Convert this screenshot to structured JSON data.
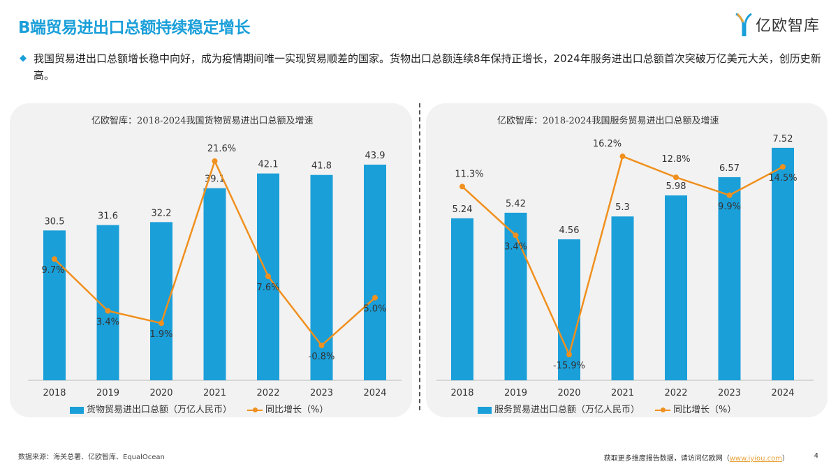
{
  "header": {
    "title": "B端贸易进出口总额持续稳定增长",
    "logo_text": "亿欧智库"
  },
  "summary": "我国贸易进出口总额增长稳中向好，成为疫情期间唯一实现贸易顺差的国家。货物出口总额连续8年保持正增长，2024年服务进出口总额首次突破万亿美元大关，创历史新高。",
  "colors": {
    "bar": "#1a9fd9",
    "line": "#f0901e",
    "title": "#1a9fd9"
  },
  "chart_data": [
    {
      "type": "bar+line",
      "title": "亿欧智库：2018-2024我国货物贸易进出口总额及增速",
      "categories": [
        "2018",
        "2019",
        "2020",
        "2021",
        "2022",
        "2023",
        "2024"
      ],
      "series": [
        {
          "name": "货物贸易进出口总额（万亿人民币）",
          "type": "bar",
          "values": [
            30.5,
            31.6,
            32.2,
            39.1,
            42.1,
            41.8,
            43.9
          ]
        },
        {
          "name": "同比增长（%）",
          "type": "line",
          "values": [
            9.7,
            3.4,
            1.9,
            21.6,
            7.6,
            -0.8,
            5.0
          ]
        }
      ],
      "legend": "bottom",
      "grid": false
    },
    {
      "type": "bar+line",
      "title": "亿欧智库：2018-2024我国服务贸易进出口总额及增速",
      "categories": [
        "2018",
        "2019",
        "2020",
        "2021",
        "2022",
        "2023",
        "2024"
      ],
      "series": [
        {
          "name": "服务贸易进出口总额（万亿人民币）",
          "type": "bar",
          "values": [
            5.24,
            5.42,
            4.56,
            5.3,
            5.98,
            6.57,
            7.52
          ]
        },
        {
          "name": "同比增长（%）",
          "type": "line",
          "values": [
            11.3,
            3.4,
            -15.9,
            16.2,
            12.8,
            9.9,
            14.5
          ]
        }
      ],
      "legend": "bottom",
      "grid": false
    }
  ],
  "footer": {
    "source": "数据来源：海关总署、亿欧智库、EqualOcean",
    "more": "获取更多维度报告数据，请访问亿欧网（",
    "link": "www.iyiou.com",
    "close": "）",
    "page": "4"
  }
}
